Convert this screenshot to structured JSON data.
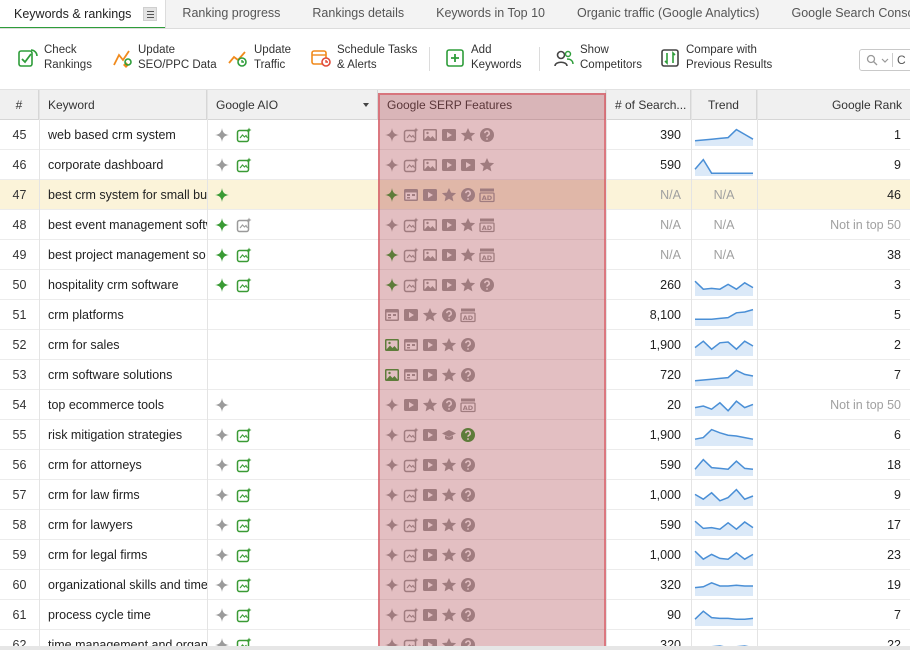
{
  "tabs": [
    {
      "label": "Keywords & rankings",
      "active": true
    },
    {
      "label": "Ranking progress"
    },
    {
      "label": "Rankings details"
    },
    {
      "label": "Keywords in Top 10"
    },
    {
      "label": "Organic traffic (Google Analytics)"
    },
    {
      "label": "Google Search Conso"
    }
  ],
  "toolbar": {
    "check_rankings": {
      "line1": "Check",
      "line2": "Rankings"
    },
    "update_seo": {
      "line1": "Update",
      "line2": "SEO/PPC Data"
    },
    "update_traffic": {
      "line1": "Update",
      "line2": "Traffic"
    },
    "schedule": {
      "line1": "Schedule Tasks",
      "line2": "& Alerts"
    },
    "add_keywords": {
      "line1": "Add",
      "line2": "Keywords"
    },
    "show_competitors": {
      "line1": "Show",
      "line2": "Competitors"
    },
    "compare": {
      "line1": "Compare with",
      "line2": "Previous Results"
    },
    "search_letter": "C"
  },
  "columns": {
    "num": "#",
    "keyword": "Keyword",
    "aio": "Google AIO",
    "serp": "Google SERP Features",
    "volume": "# of Search...",
    "trend": "Trend",
    "rank": "Google Rank"
  },
  "colors": {
    "accent": "#2e9d3a",
    "trend_line": "#4a8fd6",
    "highlight_row": "#fbf3d9",
    "serp_overlay": "#c0505a"
  },
  "rows": [
    {
      "num": "45",
      "keyword": "web based crm system",
      "aio": [
        "sparkle-gray",
        "image-new-green"
      ],
      "serp": [
        "sparkle",
        "image-new",
        "image",
        "video",
        "star",
        "question"
      ],
      "volume": "390",
      "trend": [
        0.2,
        0.25,
        0.3,
        0.35,
        0.4,
        0.9,
        0.6,
        0.3
      ],
      "rank": "1"
    },
    {
      "num": "46",
      "keyword": "corporate dashboard",
      "aio": [
        "sparkle-gray",
        "image-new-green"
      ],
      "serp": [
        "sparkle",
        "image-new",
        "image",
        "video",
        "video",
        "star"
      ],
      "volume": "590",
      "trend": [
        0.3,
        0.9,
        0.05,
        0.05,
        0.05,
        0.05,
        0.05,
        0.05
      ],
      "rank": "9"
    },
    {
      "num": "47",
      "keyword": "best crm system for small bu",
      "aio": [
        "sparkle-green"
      ],
      "serp": [
        "sparkle-green",
        "calendar",
        "video",
        "star",
        "question",
        "ad"
      ],
      "volume": "N/A",
      "trend": null,
      "trend_text": "N/A",
      "rank": "46",
      "highlight": true
    },
    {
      "num": "48",
      "keyword": "best event management softw",
      "aio": [
        "sparkle-green",
        "image-new-gray"
      ],
      "serp": [
        "sparkle",
        "image-new",
        "image",
        "video",
        "star",
        "ad"
      ],
      "volume": "N/A",
      "trend": null,
      "trend_text": "N/A",
      "rank": "Not in top 50"
    },
    {
      "num": "49",
      "keyword": "best project management so",
      "aio": [
        "sparkle-green",
        "image-new-green"
      ],
      "serp": [
        "sparkle-green",
        "image-new",
        "image",
        "video",
        "star",
        "ad"
      ],
      "volume": "N/A",
      "trend": null,
      "trend_text": "N/A",
      "rank": "38"
    },
    {
      "num": "50",
      "keyword": "hospitality crm software",
      "aio": [
        "sparkle-green",
        "image-new-green"
      ],
      "serp": [
        "sparkle-green",
        "image-new",
        "image",
        "video",
        "star",
        "question"
      ],
      "volume": "260",
      "trend": [
        0.8,
        0.3,
        0.35,
        0.3,
        0.6,
        0.3,
        0.7,
        0.4
      ],
      "rank": "3"
    },
    {
      "num": "51",
      "keyword": "crm platforms",
      "aio": [],
      "serp": [
        "calendar",
        "video",
        "star",
        "question",
        "ad"
      ],
      "volume": "8,100",
      "trend": [
        0.3,
        0.3,
        0.3,
        0.35,
        0.4,
        0.7,
        0.75,
        0.9
      ],
      "rank": "5"
    },
    {
      "num": "52",
      "keyword": "crm for sales",
      "aio": [],
      "serp": [
        "image-green",
        "calendar",
        "video",
        "star",
        "question"
      ],
      "volume": "1,900",
      "trend": [
        0.4,
        0.8,
        0.3,
        0.7,
        0.75,
        0.3,
        0.8,
        0.5
      ],
      "rank": "2"
    },
    {
      "num": "53",
      "keyword": "crm software solutions",
      "aio": [],
      "serp": [
        "image-green",
        "calendar",
        "video",
        "star",
        "question"
      ],
      "volume": "720",
      "trend": [
        0.2,
        0.25,
        0.3,
        0.35,
        0.4,
        0.85,
        0.6,
        0.5
      ],
      "rank": "7"
    },
    {
      "num": "54",
      "keyword": "top ecommerce tools",
      "aio": [
        "sparkle-gray"
      ],
      "serp": [
        "sparkle",
        "video",
        "star",
        "question",
        "ad"
      ],
      "volume": "20",
      "trend": [
        0.4,
        0.5,
        0.3,
        0.7,
        0.2,
        0.8,
        0.4,
        0.6
      ],
      "rank": "Not in top 50"
    },
    {
      "num": "55",
      "keyword": "risk mitigation strategies",
      "aio": [
        "sparkle-gray",
        "image-new-green"
      ],
      "serp": [
        "sparkle",
        "image-new",
        "video",
        "grad-cap",
        "question-green"
      ],
      "volume": "1,900",
      "trend": [
        0.3,
        0.4,
        0.9,
        0.7,
        0.55,
        0.5,
        0.4,
        0.3
      ],
      "rank": "6"
    },
    {
      "num": "56",
      "keyword": "crm for attorneys",
      "aio": [
        "sparkle-gray",
        "image-new-green"
      ],
      "serp": [
        "sparkle",
        "image-new",
        "video",
        "star",
        "question"
      ],
      "volume": "590",
      "trend": [
        0.3,
        0.9,
        0.4,
        0.35,
        0.3,
        0.8,
        0.35,
        0.3
      ],
      "rank": "18"
    },
    {
      "num": "57",
      "keyword": "crm for law firms",
      "aio": [
        "sparkle-gray",
        "image-new-green"
      ],
      "serp": [
        "sparkle",
        "image-new",
        "video",
        "star",
        "question"
      ],
      "volume": "1,000",
      "trend": [
        0.6,
        0.3,
        0.7,
        0.2,
        0.4,
        0.9,
        0.3,
        0.5
      ],
      "rank": "9"
    },
    {
      "num": "58",
      "keyword": "crm for lawyers",
      "aio": [
        "sparkle-gray",
        "image-new-green"
      ],
      "serp": [
        "sparkle",
        "image-new",
        "video",
        "star",
        "question"
      ],
      "volume": "590",
      "trend": [
        0.8,
        0.35,
        0.4,
        0.3,
        0.7,
        0.3,
        0.75,
        0.4
      ],
      "rank": "17"
    },
    {
      "num": "59",
      "keyword": "crm for legal firms",
      "aio": [
        "sparkle-gray",
        "image-new-green"
      ],
      "serp": [
        "sparkle",
        "image-new",
        "video",
        "star",
        "question"
      ],
      "volume": "1,000",
      "trend": [
        0.8,
        0.3,
        0.6,
        0.35,
        0.3,
        0.7,
        0.3,
        0.6
      ],
      "rank": "23"
    },
    {
      "num": "60",
      "keyword": "organizational skills and time",
      "aio": [
        "sparkle-gray",
        "image-new-green"
      ],
      "serp": [
        "sparkle",
        "image-new",
        "video",
        "star",
        "question"
      ],
      "volume": "320",
      "trend": [
        0.4,
        0.45,
        0.7,
        0.5,
        0.5,
        0.55,
        0.5,
        0.5
      ],
      "rank": "19"
    },
    {
      "num": "61",
      "keyword": "process cycle time",
      "aio": [
        "sparkle-gray",
        "image-new-green"
      ],
      "serp": [
        "sparkle",
        "image-new",
        "video",
        "star",
        "question"
      ],
      "volume": "90",
      "trend": [
        0.3,
        0.8,
        0.4,
        0.35,
        0.35,
        0.3,
        0.3,
        0.35
      ],
      "rank": "7"
    },
    {
      "num": "62",
      "keyword": "time management and organ",
      "aio": [
        "sparkle-gray",
        "image-new-green"
      ],
      "serp": [
        "sparkle",
        "image-new",
        "video",
        "star",
        "question"
      ],
      "volume": "320",
      "trend": [
        0.3,
        0.4,
        0.45,
        0.5,
        0.4,
        0.45,
        0.5,
        0.4
      ],
      "rank": "22"
    }
  ]
}
